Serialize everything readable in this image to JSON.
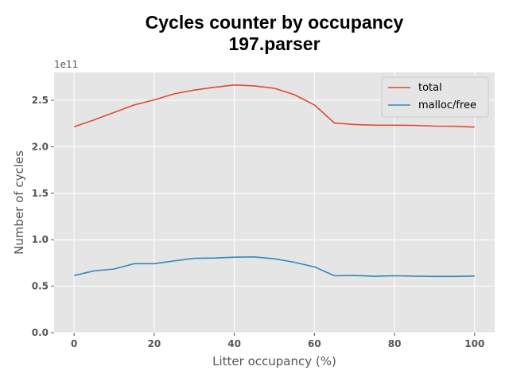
{
  "chart_data": {
    "type": "line",
    "title": "Cycles counter by occupancy",
    "subtitle": "197.parser",
    "xlabel": "Litter occupancy (%)",
    "ylabel": "Number of cycles",
    "y_offset_label": "1e11",
    "xlim": [
      -5,
      105
    ],
    "ylim": [
      0,
      2.8
    ],
    "x_ticks": [
      0,
      20,
      40,
      60,
      80,
      100
    ],
    "x_tick_labels": [
      "0",
      "20",
      "40",
      "60",
      "80",
      "100"
    ],
    "y_ticks": [
      0,
      0.5,
      1.0,
      1.5,
      2.0,
      2.5
    ],
    "y_tick_labels": [
      "0.0",
      "0.5",
      "1.0",
      "1.5",
      "2.0",
      "2.5"
    ],
    "grid": true,
    "legend_position": "top-right",
    "x": [
      0,
      5,
      10,
      15,
      20,
      25,
      30,
      35,
      40,
      45,
      50,
      55,
      60,
      65,
      70,
      75,
      80,
      85,
      90,
      95,
      100
    ],
    "series": [
      {
        "name": "total",
        "color": "#e24a33",
        "values": [
          2.215,
          2.29,
          2.37,
          2.45,
          2.505,
          2.57,
          2.61,
          2.64,
          2.665,
          2.655,
          2.63,
          2.56,
          2.45,
          2.255,
          2.24,
          2.232,
          2.232,
          2.23,
          2.222,
          2.22,
          2.212
        ]
      },
      {
        "name": "malloc/free",
        "color": "#348abd",
        "values": [
          0.615,
          0.665,
          0.685,
          0.742,
          0.742,
          0.772,
          0.8,
          0.803,
          0.812,
          0.815,
          0.795,
          0.757,
          0.707,
          0.612,
          0.615,
          0.607,
          0.612,
          0.608,
          0.605,
          0.605,
          0.61
        ]
      }
    ]
  }
}
